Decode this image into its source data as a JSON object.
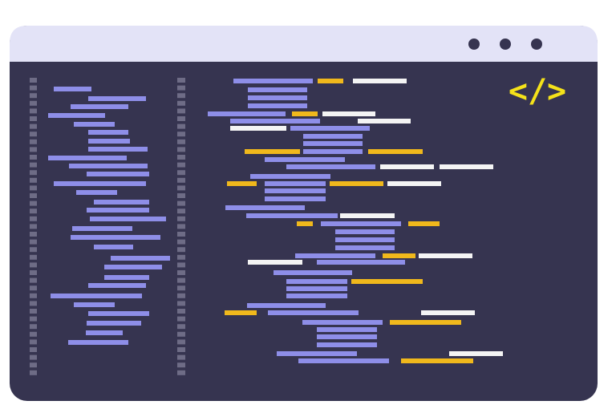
{
  "icon": {
    "label": "</>"
  }
}
